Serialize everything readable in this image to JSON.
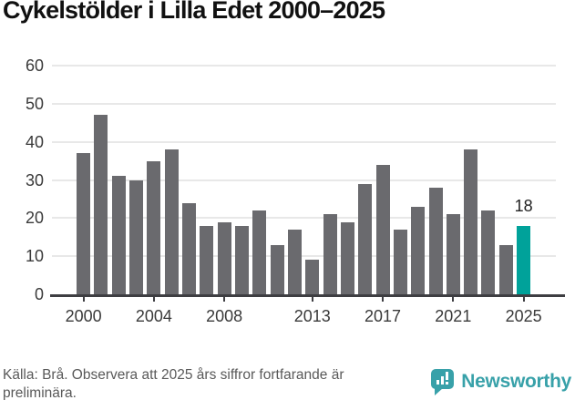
{
  "title": "Cykelstölder i Lilla Edet 2000–2025",
  "chart_data": {
    "type": "bar",
    "title": "Cykelstölder i Lilla Edet 2000–2025",
    "x": [
      2000,
      2001,
      2002,
      2003,
      2004,
      2005,
      2006,
      2007,
      2008,
      2009,
      2010,
      2011,
      2012,
      2013,
      2014,
      2015,
      2016,
      2017,
      2018,
      2019,
      2020,
      2021,
      2022,
      2023,
      2024,
      2025
    ],
    "values": [
      37,
      47,
      31,
      30,
      35,
      38,
      24,
      18,
      19,
      18,
      22,
      13,
      17,
      9,
      21,
      19,
      29,
      34,
      17,
      23,
      28,
      21,
      38,
      22,
      13,
      18
    ],
    "ylim": [
      0,
      60
    ],
    "yticks": [
      0,
      10,
      20,
      30,
      40,
      50,
      60
    ],
    "xtick_years": [
      2000,
      2004,
      2008,
      2013,
      2017,
      2021,
      2025
    ],
    "xtick_labels": [
      "2000",
      "2004",
      "2008",
      "2013",
      "2017",
      "2021",
      "2025"
    ],
    "grid": true,
    "legend_position": "none",
    "bar_color": "#6a6a6e",
    "highlight": {
      "year": 2025,
      "value": 18,
      "label": "18",
      "color": "#00a29a"
    }
  },
  "footer": {
    "source_text": "Källa: Brå. Observera att 2025 års siffror fortfarande är preliminära.",
    "brand_name": "Newsworthy"
  }
}
